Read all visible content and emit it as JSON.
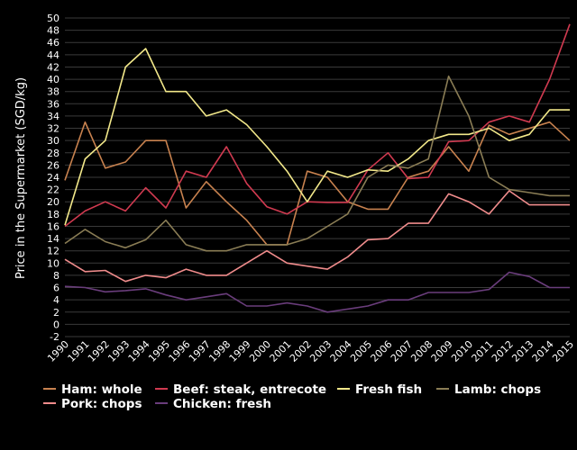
{
  "chart_data": {
    "type": "line",
    "title": "",
    "xlabel": "",
    "ylabel": "Price in the Supermarket (SGD/kg)",
    "ylim": [
      -2,
      50
    ],
    "ytick_step": 2,
    "grid": true,
    "legend_position": "bottom",
    "x": [
      "1990",
      "1991",
      "1992",
      "1993",
      "1994",
      "1995",
      "1996",
      "1997",
      "1998",
      "1999",
      "2000",
      "2001",
      "2002",
      "2003",
      "2004",
      "2005",
      "2006",
      "2007",
      "2008",
      "2009",
      "2010",
      "2011",
      "2012",
      "2013",
      "2014",
      "2015"
    ],
    "series": [
      {
        "name": "Ham: whole",
        "color": "#c8824f",
        "values": [
          23.5,
          33,
          25.5,
          26.5,
          30,
          30,
          19,
          23.3,
          20,
          17,
          13,
          13,
          25,
          24,
          20,
          18.8,
          18.8,
          24,
          25,
          29,
          25,
          32.5,
          31,
          32,
          33,
          30
        ]
      },
      {
        "name": "Beef: steak, entrecote",
        "color": "#d03a50",
        "values": [
          16,
          18.5,
          20,
          18.5,
          22.3,
          19,
          25,
          24,
          29,
          23,
          19.2,
          18,
          20,
          19.9,
          19.9,
          25.2,
          28,
          23.8,
          24,
          29.8,
          30,
          33,
          34,
          33,
          40,
          49
        ]
      },
      {
        "name": "Fresh fish",
        "color": "#f2e88a",
        "values": [
          16.2,
          27,
          30,
          42,
          45,
          38,
          38,
          34,
          35,
          32.6,
          29,
          25,
          20,
          25,
          24,
          25.2,
          25,
          27,
          30,
          31,
          31,
          32,
          30,
          31,
          35,
          35
        ]
      },
      {
        "name": "Lamb: chops",
        "color": "#8a7d55",
        "values": [
          13.2,
          15.5,
          13.5,
          12.5,
          13.8,
          17,
          13,
          12,
          12,
          13,
          13,
          13,
          14,
          16,
          18,
          24,
          26,
          25.5,
          27,
          40.5,
          34,
          24,
          22,
          21.5,
          21,
          21
        ]
      },
      {
        "name": "Pork: chops",
        "color": "#f08c8c",
        "values": [
          10.6,
          8.6,
          8.8,
          7,
          8,
          7.6,
          9,
          8,
          8,
          10,
          12,
          10,
          9.5,
          9,
          11,
          13.8,
          14,
          16.5,
          16.5,
          21.3,
          20,
          18,
          21.8,
          19.5,
          19.5,
          19.5
        ]
      },
      {
        "name": "Chicken: fresh",
        "color": "#6a3d7c",
        "values": [
          6.2,
          6,
          5.3,
          5.5,
          5.8,
          4.8,
          4,
          4.5,
          5,
          3,
          3,
          3.5,
          3,
          2,
          2.5,
          3,
          4,
          4,
          5.2,
          5.2,
          5.2,
          5.7,
          8.5,
          7.8,
          6,
          6
        ]
      }
    ]
  }
}
